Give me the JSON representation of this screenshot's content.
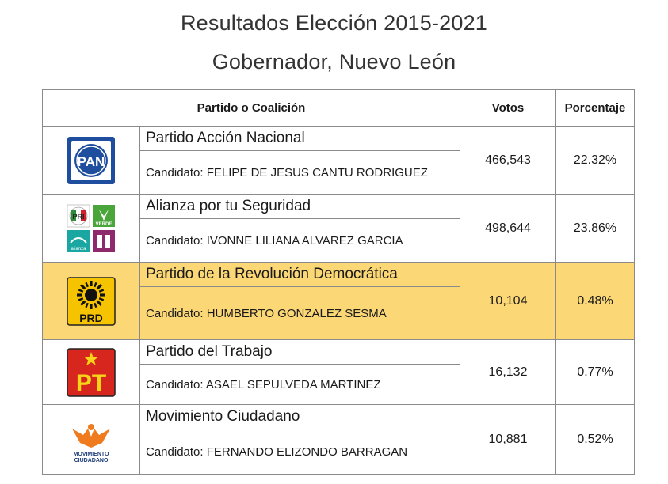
{
  "header": {
    "title_line1": "Resultados Elección 2015-2021",
    "title_line2": "Gobernador, Nuevo León"
  },
  "table": {
    "columns": [
      "Partido o Coalición",
      "Votos",
      "Porcentaje"
    ],
    "rows": [
      {
        "logo_icon": "pan-logo-icon",
        "logo_text": "PAN",
        "party": "Partido Acción Nacional",
        "candidate": "Candidato: FELIPE DE JESUS CANTU RODRIGUEZ",
        "votes": "466,543",
        "percent": "22.32%",
        "highlighted": false
      },
      {
        "logo_icon": "coalition-logos-icon",
        "logo_text_green": "VERDE",
        "logo_text_alianza": "alianza",
        "party": "Alianza por tu Seguridad",
        "candidate": "Candidato: IVONNE LILIANA ALVAREZ GARCIA",
        "votes": "498,644",
        "percent": "23.86%",
        "highlighted": false
      },
      {
        "logo_icon": "prd-sun-logo-icon",
        "logo_text": "PRD",
        "party": "Partido de la Revolución Democrática",
        "candidate": "Candidato: HUMBERTO GONZALEZ SESMA",
        "votes": "10,104",
        "percent": "0.48%",
        "highlighted": true
      },
      {
        "logo_icon": "pt-star-logo-icon",
        "logo_text": "PT",
        "party": "Partido del Trabajo",
        "candidate": "Candidato: ASAEL SEPULVEDA MARTINEZ",
        "votes": "16,132",
        "percent": "0.77%",
        "highlighted": false
      },
      {
        "logo_icon": "eagle-logo-icon",
        "logo_text_line1": "MOVIMIENTO",
        "logo_text_line2": "CIUDADANO",
        "party": "Movimiento Ciudadano",
        "candidate": "Candidato: FERNANDO ELIZONDO BARRAGAN",
        "votes": "10,881",
        "percent": "0.52%",
        "highlighted": false
      }
    ]
  },
  "colors": {
    "highlight": "#fbd775",
    "pan_blue": "#1f4e9f",
    "prd_yellow": "#f5c300",
    "pt_red": "#d7261e",
    "mc_orange": "#f07b1f"
  }
}
